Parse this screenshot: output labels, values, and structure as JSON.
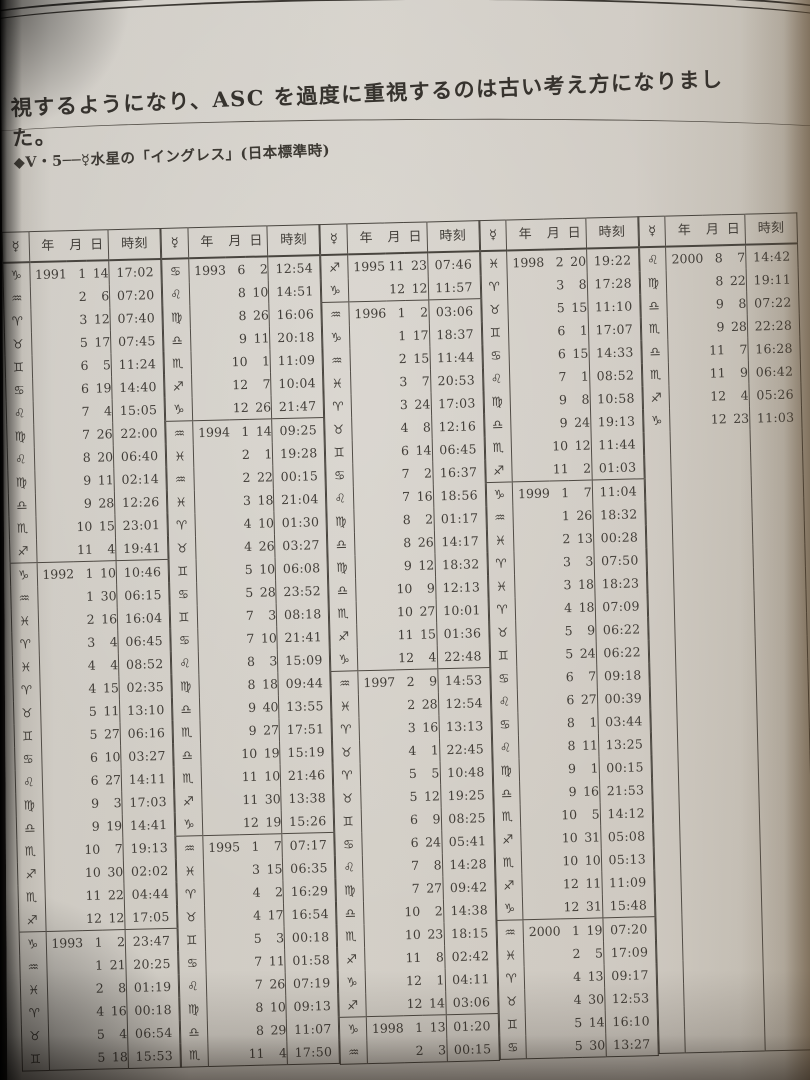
{
  "page": {
    "paragraph": "視するようになり、ASC を過度に重視するのは古い考え方になりました。",
    "caption": "◆Ⅴ・5──☿水星の「イングレス」(日本標準時)"
  },
  "colors": {
    "paper": "#d6d2cc",
    "ink": "#35322e",
    "table_line": "#4a4641",
    "photo_shadow": "#151311"
  },
  "table": {
    "row_count": 35,
    "header": {
      "planet": "☿",
      "year": "年",
      "month": "月",
      "day": "日",
      "time": "時刻"
    },
    "columns": [
      {
        "rows": [
          [
            "♑",
            "1991",
            "1",
            "14",
            "17:02"
          ],
          [
            "♒",
            "",
            "2",
            "6",
            "07:20"
          ],
          [
            "♈",
            "",
            "3",
            "12",
            "07:40"
          ],
          [
            "♉",
            "",
            "5",
            "17",
            "07:45"
          ],
          [
            "♊",
            "",
            "6",
            "5",
            "11:24"
          ],
          [
            "♋",
            "",
            "6",
            "19",
            "14:40"
          ],
          [
            "♌",
            "",
            "7",
            "4",
            "15:05"
          ],
          [
            "♍",
            "",
            "7",
            "26",
            "22:00"
          ],
          [
            "♌",
            "",
            "8",
            "20",
            "06:40"
          ],
          [
            "♍",
            "",
            "9",
            "11",
            "02:14"
          ],
          [
            "♎",
            "",
            "9",
            "28",
            "12:26"
          ],
          [
            "♏",
            "",
            "10",
            "15",
            "23:01"
          ],
          [
            "♐",
            "",
            "11",
            "4",
            "19:41"
          ],
          [
            "♑",
            "1992",
            "1",
            "10",
            "10:46"
          ],
          [
            "♒",
            "",
            "1",
            "30",
            "06:15"
          ],
          [
            "♓",
            "",
            "2",
            "16",
            "16:04"
          ],
          [
            "♈",
            "",
            "3",
            "4",
            "06:45"
          ],
          [
            "♓",
            "",
            "4",
            "4",
            "08:52"
          ],
          [
            "♈",
            "",
            "4",
            "15",
            "02:35"
          ],
          [
            "♉",
            "",
            "5",
            "11",
            "13:10"
          ],
          [
            "♊",
            "",
            "5",
            "27",
            "06:16"
          ],
          [
            "♋",
            "",
            "6",
            "10",
            "03:27"
          ],
          [
            "♌",
            "",
            "6",
            "27",
            "14:11"
          ],
          [
            "♍",
            "",
            "9",
            "3",
            "17:03"
          ],
          [
            "♎",
            "",
            "9",
            "19",
            "14:41"
          ],
          [
            "♏",
            "",
            "10",
            "7",
            "19:13"
          ],
          [
            "♐",
            "",
            "10",
            "30",
            "02:02"
          ],
          [
            "♏",
            "",
            "11",
            "22",
            "04:44"
          ],
          [
            "♐",
            "",
            "12",
            "12",
            "17:05"
          ],
          [
            "♑",
            "1993",
            "1",
            "2",
            "23:47"
          ],
          [
            "♒",
            "",
            "1",
            "21",
            "20:25"
          ],
          [
            "♓",
            "",
            "2",
            "8",
            "01:19"
          ],
          [
            "♈",
            "",
            "4",
            "16",
            "00:18"
          ],
          [
            "♉",
            "",
            "5",
            "4",
            "06:54"
          ],
          [
            "♊",
            "",
            "5",
            "18",
            "15:53"
          ]
        ]
      },
      {
        "rows": [
          [
            "♋",
            "1993",
            "6",
            "2",
            "12:54"
          ],
          [
            "♌",
            "",
            "8",
            "10",
            "14:51"
          ],
          [
            "♍",
            "",
            "8",
            "26",
            "16:06"
          ],
          [
            "♎",
            "",
            "9",
            "11",
            "20:18"
          ],
          [
            "♏",
            "",
            "10",
            "1",
            "11:09"
          ],
          [
            "♐",
            "",
            "12",
            "7",
            "10:04"
          ],
          [
            "♑",
            "",
            "12",
            "26",
            "21:47"
          ],
          [
            "♒",
            "1994",
            "1",
            "14",
            "09:25"
          ],
          [
            "♓",
            "",
            "2",
            "1",
            "19:28"
          ],
          [
            "♒",
            "",
            "2",
            "22",
            "00:15"
          ],
          [
            "♓",
            "",
            "3",
            "18",
            "21:04"
          ],
          [
            "♈",
            "",
            "4",
            "10",
            "01:30"
          ],
          [
            "♉",
            "",
            "4",
            "26",
            "03:27"
          ],
          [
            "♊",
            "",
            "5",
            "10",
            "06:08"
          ],
          [
            "♋",
            "",
            "5",
            "28",
            "23:52"
          ],
          [
            "♊",
            "",
            "7",
            "3",
            "08:18"
          ],
          [
            "♋",
            "",
            "7",
            "10",
            "21:41"
          ],
          [
            "♌",
            "",
            "8",
            "3",
            "15:09"
          ],
          [
            "♍",
            "",
            "8",
            "18",
            "09:44"
          ],
          [
            "♎",
            "",
            "9",
            "40",
            "13:55"
          ],
          [
            "♏",
            "",
            "9",
            "27",
            "17:51"
          ],
          [
            "♎",
            "",
            "10",
            "19",
            "15:19"
          ],
          [
            "♏",
            "",
            "11",
            "10",
            "21:46"
          ],
          [
            "♐",
            "",
            "11",
            "30",
            "13:38"
          ],
          [
            "♑",
            "",
            "12",
            "19",
            "15:26"
          ],
          [
            "♒",
            "1995",
            "1",
            "7",
            "07:17"
          ],
          [
            "♓",
            "",
            "3",
            "15",
            "06:35"
          ],
          [
            "♈",
            "",
            "4",
            "2",
            "16:29"
          ],
          [
            "♉",
            "",
            "4",
            "17",
            "16:54"
          ],
          [
            "♊",
            "",
            "5",
            "3",
            "00:18"
          ],
          [
            "♋",
            "",
            "7",
            "11",
            "01:58"
          ],
          [
            "♌",
            "",
            "7",
            "26",
            "07:19"
          ],
          [
            "♍",
            "",
            "8",
            "10",
            "09:13"
          ],
          [
            "♎",
            "",
            "8",
            "29",
            "11:07"
          ],
          [
            "♏",
            "",
            "11",
            "4",
            "17:50"
          ]
        ]
      },
      {
        "rows": [
          [
            "♐",
            "1995",
            "11",
            "23",
            "07:46"
          ],
          [
            "♑",
            "",
            "12",
            "12",
            "11:57"
          ],
          [
            "♒",
            "1996",
            "1",
            "2",
            "03:06"
          ],
          [
            "♑",
            "",
            "1",
            "17",
            "18:37"
          ],
          [
            "♒",
            "",
            "2",
            "15",
            "11:44"
          ],
          [
            "♓",
            "",
            "3",
            "7",
            "20:53"
          ],
          [
            "♈",
            "",
            "3",
            "24",
            "17:03"
          ],
          [
            "♉",
            "",
            "4",
            "8",
            "12:16"
          ],
          [
            "♊",
            "",
            "6",
            "14",
            "06:45"
          ],
          [
            "♋",
            "",
            "7",
            "2",
            "16:37"
          ],
          [
            "♌",
            "",
            "7",
            "16",
            "18:56"
          ],
          [
            "♍",
            "",
            "8",
            "2",
            "01:17"
          ],
          [
            "♎",
            "",
            "8",
            "26",
            "14:17"
          ],
          [
            "♍",
            "",
            "9",
            "12",
            "18:32"
          ],
          [
            "♎",
            "",
            "10",
            "9",
            "12:13"
          ],
          [
            "♏",
            "",
            "10",
            "27",
            "10:01"
          ],
          [
            "♐",
            "",
            "11",
            "15",
            "01:36"
          ],
          [
            "♑",
            "",
            "12",
            "4",
            "22:48"
          ],
          [
            "♒",
            "1997",
            "2",
            "9",
            "14:53"
          ],
          [
            "♓",
            "",
            "2",
            "28",
            "12:54"
          ],
          [
            "♈",
            "",
            "3",
            "16",
            "13:13"
          ],
          [
            "♉",
            "",
            "4",
            "1",
            "22:45"
          ],
          [
            "♈",
            "",
            "5",
            "5",
            "10:48"
          ],
          [
            "♉",
            "",
            "5",
            "12",
            "19:25"
          ],
          [
            "♊",
            "",
            "6",
            "9",
            "08:25"
          ],
          [
            "♋",
            "",
            "6",
            "24",
            "05:41"
          ],
          [
            "♌",
            "",
            "7",
            "8",
            "14:28"
          ],
          [
            "♍",
            "",
            "7",
            "27",
            "09:42"
          ],
          [
            "♎",
            "",
            "10",
            "2",
            "14:38"
          ],
          [
            "♏",
            "",
            "10",
            "23",
            "18:15"
          ],
          [
            "♐",
            "",
            "11",
            "8",
            "02:42"
          ],
          [
            "♑",
            "",
            "12",
            "1",
            "04:11"
          ],
          [
            "♐",
            "",
            "12",
            "14",
            "03:06"
          ],
          [
            "♑",
            "1998",
            "1",
            "13",
            "01:20"
          ],
          [
            "♒",
            "",
            "2",
            "3",
            "00:15"
          ]
        ]
      },
      {
        "rows": [
          [
            "♓",
            "1998",
            "2",
            "20",
            "19:22"
          ],
          [
            "♈",
            "",
            "3",
            "8",
            "17:28"
          ],
          [
            "♉",
            "",
            "5",
            "15",
            "11:10"
          ],
          [
            "♊",
            "",
            "6",
            "1",
            "17:07"
          ],
          [
            "♋",
            "",
            "6",
            "15",
            "14:33"
          ],
          [
            "♌",
            "",
            "7",
            "1",
            "08:52"
          ],
          [
            "♍",
            "",
            "9",
            "8",
            "10:58"
          ],
          [
            "♎",
            "",
            "9",
            "24",
            "19:13"
          ],
          [
            "♏",
            "",
            "10",
            "12",
            "11:44"
          ],
          [
            "♐",
            "",
            "11",
            "2",
            "01:03"
          ],
          [
            "♑",
            "1999",
            "1",
            "7",
            "11:04"
          ],
          [
            "♒",
            "",
            "1",
            "26",
            "18:32"
          ],
          [
            "♓",
            "",
            "2",
            "13",
            "00:28"
          ],
          [
            "♈",
            "",
            "3",
            "3",
            "07:50"
          ],
          [
            "♓",
            "",
            "3",
            "18",
            "18:23"
          ],
          [
            "♈",
            "",
            "4",
            "18",
            "07:09"
          ],
          [
            "♉",
            "",
            "5",
            "9",
            "06:22"
          ],
          [
            "♊",
            "",
            "5",
            "24",
            "06:22"
          ],
          [
            "♋",
            "",
            "6",
            "7",
            "09:18"
          ],
          [
            "♌",
            "",
            "6",
            "27",
            "00:39"
          ],
          [
            "♋",
            "",
            "8",
            "1",
            "03:44"
          ],
          [
            "♌",
            "",
            "8",
            "11",
            "13:25"
          ],
          [
            "♍",
            "",
            "9",
            "1",
            "00:15"
          ],
          [
            "♎",
            "",
            "9",
            "16",
            "21:53"
          ],
          [
            "♏",
            "",
            "10",
            "5",
            "14:12"
          ],
          [
            "♐",
            "",
            "10",
            "31",
            "05:08"
          ],
          [
            "♏",
            "",
            "10",
            "10",
            "05:13"
          ],
          [
            "♐",
            "",
            "12",
            "11",
            "11:09"
          ],
          [
            "♑",
            "",
            "12",
            "31",
            "15:48"
          ],
          [
            "♒",
            "2000",
            "1",
            "19",
            "07:20"
          ],
          [
            "♓",
            "",
            "2",
            "5",
            "17:09"
          ],
          [
            "♈",
            "",
            "4",
            "13",
            "09:17"
          ],
          [
            "♉",
            "",
            "4",
            "30",
            "12:53"
          ],
          [
            "♊",
            "",
            "5",
            "14",
            "16:10"
          ],
          [
            "♋",
            "",
            "5",
            "30",
            "13:27"
          ]
        ]
      },
      {
        "rows": [
          [
            "♌",
            "2000",
            "8",
            "7",
            "14:42"
          ],
          [
            "♍",
            "",
            "8",
            "22",
            "19:11"
          ],
          [
            "♎",
            "",
            "9",
            "8",
            "07:22"
          ],
          [
            "♏",
            "",
            "9",
            "28",
            "22:28"
          ],
          [
            "♎",
            "",
            "11",
            "7",
            "16:28"
          ],
          [
            "♏",
            "",
            "11",
            "9",
            "06:42"
          ],
          [
            "♐",
            "",
            "12",
            "4",
            "05:26"
          ],
          [
            "♑",
            "",
            "12",
            "23",
            "11:03"
          ]
        ]
      }
    ]
  }
}
